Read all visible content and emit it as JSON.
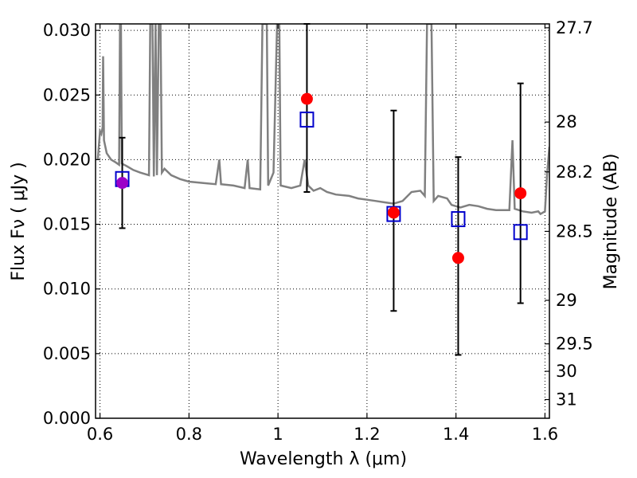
{
  "chart_data": {
    "type": "scatter",
    "xlabel": "Wavelength λ (μm)",
    "ylabel": "Flux Fν ( μJy )",
    "y2label": "Magnitude (AB)",
    "xlim": [
      0.59,
      1.61
    ],
    "ylim": [
      0.0,
      0.0305
    ],
    "grid": true,
    "x_ticks": [
      0.6,
      0.8,
      1.0,
      1.2,
      1.4,
      1.6
    ],
    "x_tick_labels": [
      "0.6",
      "0.8",
      "1",
      "1.2",
      "1.4",
      "1.6"
    ],
    "y_ticks": [
      0.0,
      0.005,
      0.01,
      0.015,
      0.02,
      0.025,
      0.03
    ],
    "y_tick_labels": [
      "0.000",
      "0.005",
      "0.010",
      "0.015",
      "0.020",
      "0.025",
      "0.030"
    ],
    "right_ticks": [
      {
        "label": "27.7",
        "value": 27.7
      },
      {
        "label": "28",
        "value": 28.0
      },
      {
        "label": "28.2",
        "value": 28.2
      },
      {
        "label": "28.5",
        "value": 28.5
      },
      {
        "label": "29",
        "value": 29.0
      },
      {
        "label": "29.5",
        "value": 29.5
      },
      {
        "label": "30",
        "value": 30.0
      },
      {
        "label": "31",
        "value": 31.0
      }
    ],
    "series": [
      {
        "kind": "spectrum-line",
        "color": "#808080",
        "points": [
          [
            0.595,
            0.02
          ],
          [
            0.6,
            0.0222
          ],
          [
            0.603,
            0.022
          ],
          [
            0.606,
            0.0225
          ],
          [
            0.607,
            0.028
          ],
          [
            0.609,
            0.0215
          ],
          [
            0.615,
            0.0205
          ],
          [
            0.625,
            0.02
          ],
          [
            0.635,
            0.0198
          ],
          [
            0.643,
            0.0196
          ],
          [
            0.645,
            0.0305
          ],
          [
            0.647,
            0.0305
          ],
          [
            0.649,
            0.0197
          ],
          [
            0.66,
            0.0195
          ],
          [
            0.675,
            0.0192
          ],
          [
            0.69,
            0.019
          ],
          [
            0.71,
            0.0188
          ],
          [
            0.713,
            0.0305
          ],
          [
            0.718,
            0.0305
          ],
          [
            0.721,
            0.0187
          ],
          [
            0.725,
            0.0305
          ],
          [
            0.728,
            0.0188
          ],
          [
            0.732,
            0.0305
          ],
          [
            0.736,
            0.0305
          ],
          [
            0.739,
            0.019
          ],
          [
            0.745,
            0.0193
          ],
          [
            0.76,
            0.0188
          ],
          [
            0.78,
            0.0185
          ],
          [
            0.8,
            0.0183
          ],
          [
            0.83,
            0.0182
          ],
          [
            0.86,
            0.0181
          ],
          [
            0.868,
            0.02
          ],
          [
            0.872,
            0.0181
          ],
          [
            0.9,
            0.018
          ],
          [
            0.925,
            0.0178
          ],
          [
            0.932,
            0.02
          ],
          [
            0.936,
            0.0178
          ],
          [
            0.96,
            0.0177
          ],
          [
            0.965,
            0.0305
          ],
          [
            0.975,
            0.0305
          ],
          [
            0.978,
            0.018
          ],
          [
            0.99,
            0.019
          ],
          [
            0.998,
            0.0305
          ],
          [
            1.003,
            0.0305
          ],
          [
            1.006,
            0.018
          ],
          [
            1.03,
            0.0178
          ],
          [
            1.05,
            0.018
          ],
          [
            1.06,
            0.02
          ],
          [
            1.068,
            0.018
          ],
          [
            1.08,
            0.0176
          ],
          [
            1.095,
            0.0178
          ],
          [
            1.11,
            0.0175
          ],
          [
            1.13,
            0.0173
          ],
          [
            1.16,
            0.0172
          ],
          [
            1.18,
            0.017
          ],
          [
            1.2,
            0.0169
          ],
          [
            1.22,
            0.0168
          ],
          [
            1.24,
            0.0167
          ],
          [
            1.26,
            0.0166
          ],
          [
            1.28,
            0.0168
          ],
          [
            1.3,
            0.0175
          ],
          [
            1.32,
            0.0176
          ],
          [
            1.33,
            0.0172
          ],
          [
            1.335,
            0.0305
          ],
          [
            1.345,
            0.0305
          ],
          [
            1.35,
            0.0168
          ],
          [
            1.36,
            0.0172
          ],
          [
            1.38,
            0.017
          ],
          [
            1.39,
            0.0165
          ],
          [
            1.4,
            0.0164
          ],
          [
            1.41,
            0.0163
          ],
          [
            1.43,
            0.0165
          ],
          [
            1.45,
            0.0164
          ],
          [
            1.47,
            0.0162
          ],
          [
            1.49,
            0.0161
          ],
          [
            1.51,
            0.0161
          ],
          [
            1.52,
            0.0161
          ],
          [
            1.527,
            0.0215
          ],
          [
            1.532,
            0.0162
          ],
          [
            1.55,
            0.016
          ],
          [
            1.57,
            0.0159
          ],
          [
            1.585,
            0.016
          ],
          [
            1.59,
            0.0158
          ],
          [
            1.6,
            0.016
          ],
          [
            1.605,
            0.019
          ],
          [
            1.61,
            0.021
          ]
        ]
      },
      {
        "kind": "errorbars",
        "color": "#000000",
        "points": [
          {
            "x": 0.65,
            "low": 0.0147,
            "high": 0.0217
          },
          {
            "x": 1.065,
            "low": 0.0175,
            "high": 0.0305
          },
          {
            "x": 1.26,
            "low": 0.0083,
            "high": 0.0238
          },
          {
            "x": 1.405,
            "low": 0.0049,
            "high": 0.0202
          },
          {
            "x": 1.545,
            "low": 0.0089,
            "high": 0.0259
          }
        ]
      },
      {
        "kind": "open-squares",
        "color": "#0000cc",
        "points": [
          {
            "x": 0.65,
            "y": 0.0185
          },
          {
            "x": 1.065,
            "y": 0.0231
          },
          {
            "x": 1.26,
            "y": 0.0158
          },
          {
            "x": 1.405,
            "y": 0.0154
          },
          {
            "x": 1.545,
            "y": 0.0144
          }
        ]
      },
      {
        "kind": "filled-circles",
        "color": "#ff0000",
        "points": [
          {
            "x": 0.65,
            "y": 0.0182,
            "color": "#9b00c8"
          },
          {
            "x": 1.065,
            "y": 0.0247
          },
          {
            "x": 1.26,
            "y": 0.0159
          },
          {
            "x": 1.405,
            "y": 0.0124
          },
          {
            "x": 1.545,
            "y": 0.0174
          }
        ]
      }
    ]
  }
}
